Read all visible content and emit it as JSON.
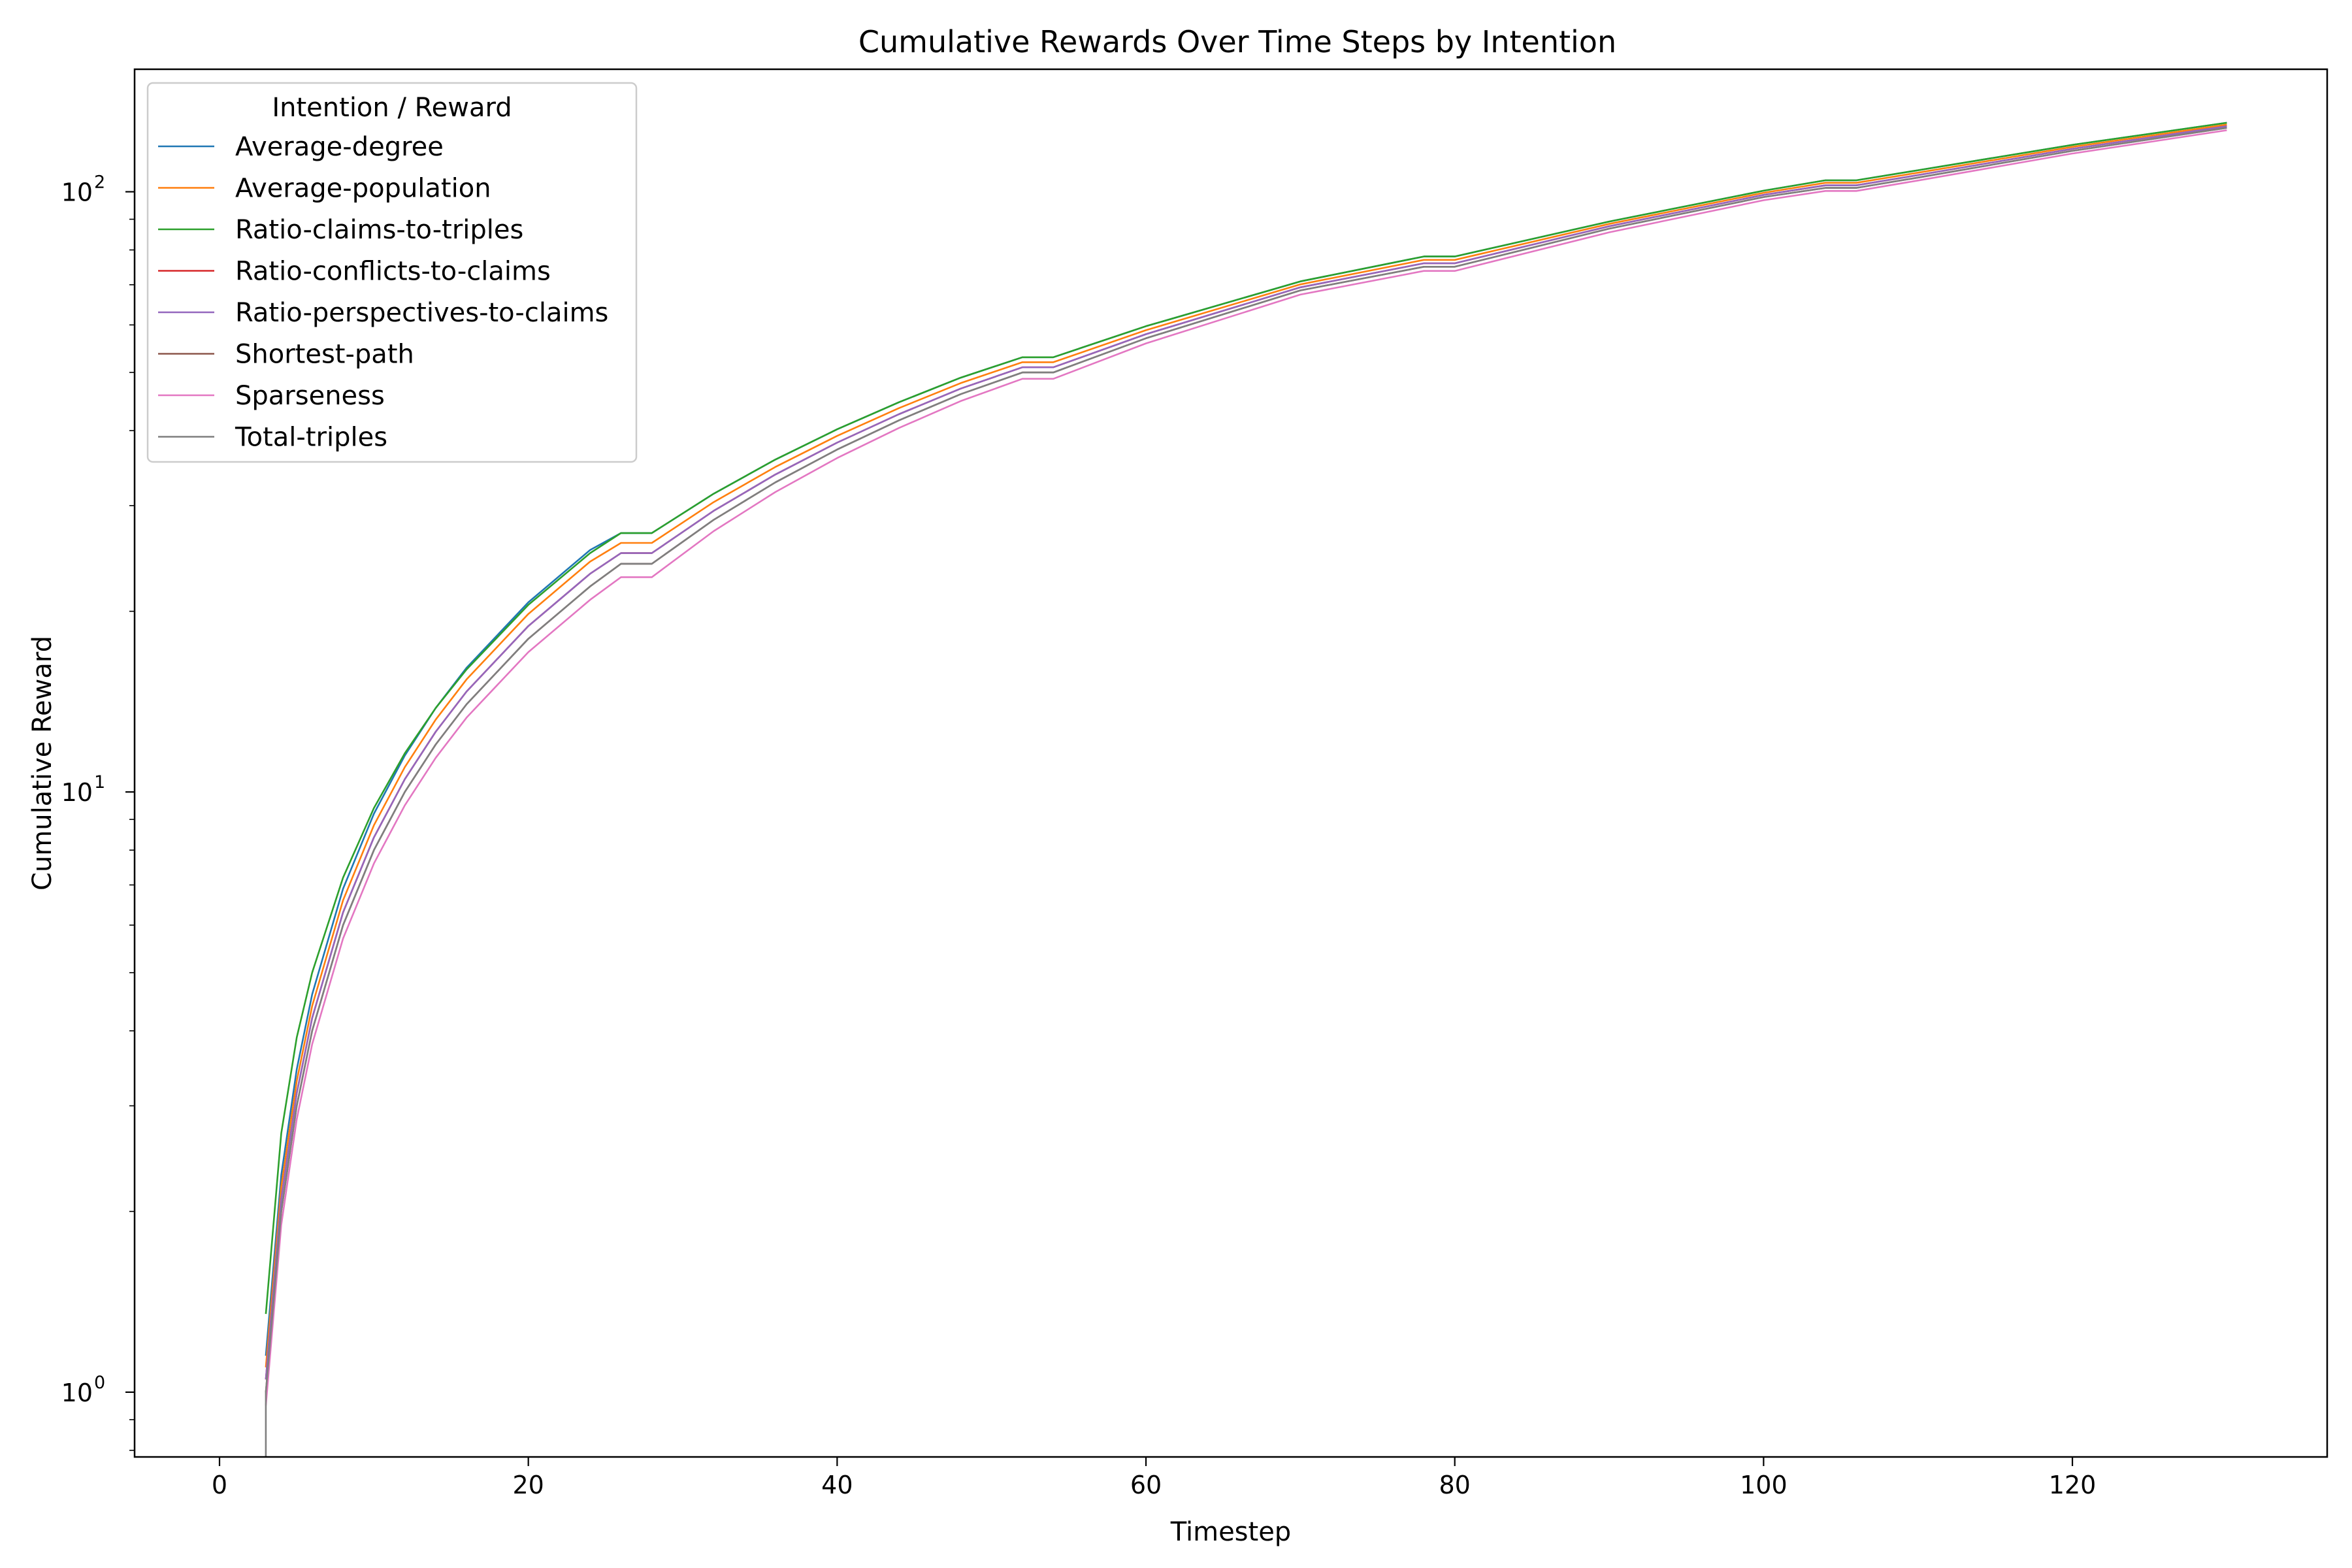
{
  "chart_data": {
    "type": "line",
    "title": "Cumulative Rewards Over Time Steps by Intention",
    "xlabel": "Timestep",
    "ylabel": "Cumulative Reward",
    "xscale": "linear",
    "yscale": "log",
    "xlim": [
      -5.5,
      136.5
    ],
    "ylim": [
      0.78,
      160
    ],
    "xticks": [
      0,
      20,
      40,
      60,
      80,
      100,
      120
    ],
    "yticks": [
      1,
      10,
      100
    ],
    "ytick_labels": [
      "10",
      "10",
      "10"
    ],
    "ytick_exponents": [
      "0",
      "1",
      "2"
    ],
    "grid": false,
    "legend": {
      "title": "Intention / Reward",
      "position": "top-left"
    },
    "series": [
      {
        "name": "Average-degree",
        "color": "#1f77b4",
        "x": [
          3,
          4,
          5,
          6,
          8,
          10,
          12,
          14,
          16,
          20,
          24,
          26,
          28,
          32,
          36,
          40,
          44,
          48,
          52,
          54,
          60,
          70,
          78,
          80,
          90,
          100,
          104,
          106,
          110,
          120,
          130
        ],
        "y": [
          1.15,
          2.3,
          3.45,
          4.6,
          6.9,
          9.2,
          11.5,
          13.8,
          16.1,
          20.7,
          25.3,
          27.0,
          27.0,
          31.4,
          35.8,
          40.2,
          44.6,
          49.0,
          53.0,
          53.0,
          59.7,
          70.9,
          78.0,
          78.0,
          89.2,
          100.4,
          104.5,
          104.5,
          108.6,
          119.7,
          130.3
        ]
      },
      {
        "name": "Average-population",
        "color": "#ff7f0e",
        "x": [
          3,
          4,
          5,
          6,
          8,
          10,
          12,
          14,
          16,
          20,
          24,
          26,
          28,
          32,
          36,
          40,
          44,
          48,
          52,
          54,
          60,
          70,
          78,
          80,
          90,
          100,
          104,
          106,
          110,
          120,
          130
        ],
        "y": [
          1.1,
          2.2,
          3.3,
          4.4,
          6.6,
          8.8,
          11.0,
          13.2,
          15.4,
          19.8,
          24.2,
          26.0,
          26.0,
          30.4,
          34.8,
          39.2,
          43.6,
          48.0,
          52.0,
          52.0,
          58.8,
          70.1,
          77.0,
          77.0,
          88.4,
          99.6,
          103.5,
          103.5,
          107.6,
          118.8,
          129.4
        ]
      },
      {
        "name": "Ratio-claims-to-triples",
        "color": "#2ca02c",
        "x": [
          3,
          4,
          5,
          6,
          8,
          10,
          12,
          14,
          16,
          20,
          24,
          26,
          28,
          32,
          36,
          40,
          44,
          48,
          52,
          54,
          60,
          70,
          78,
          80,
          90,
          100,
          104,
          106,
          110,
          120,
          130
        ],
        "y": [
          1.35,
          2.7,
          3.9,
          5.0,
          7.2,
          9.4,
          11.6,
          13.8,
          16.0,
          20.5,
          25.0,
          27.0,
          27.0,
          31.4,
          35.8,
          40.2,
          44.6,
          49.0,
          53.0,
          53.0,
          59.7,
          70.9,
          78.0,
          78.0,
          89.2,
          100.4,
          104.5,
          104.5,
          108.6,
          119.7,
          130.3
        ]
      },
      {
        "name": "Ratio-conflicts-to-claims",
        "color": "#d62728",
        "x": [
          3,
          4,
          5,
          6,
          8,
          10,
          12,
          14,
          16,
          20,
          24,
          26,
          28,
          32,
          36,
          40,
          44,
          48,
          52,
          54,
          60,
          70,
          78,
          80,
          90,
          100,
          104,
          106,
          110,
          120,
          130
        ],
        "y": [
          1.05,
          2.1,
          3.15,
          4.2,
          6.3,
          8.4,
          10.5,
          12.6,
          14.7,
          18.9,
          23.1,
          25.0,
          25.0,
          29.4,
          33.8,
          38.2,
          42.6,
          47.0,
          51.0,
          51.0,
          57.9,
          69.3,
          76.0,
          76.0,
          87.6,
          98.8,
          102.5,
          102.5,
          106.6,
          117.9,
          128.6
        ]
      },
      {
        "name": "Ratio-perspectives-to-claims",
        "color": "#9467bd",
        "x": [
          3,
          4,
          5,
          6,
          8,
          10,
          12,
          14,
          16,
          20,
          24,
          26,
          28,
          32,
          36,
          40,
          44,
          48,
          52,
          54,
          60,
          70,
          78,
          80,
          90,
          100,
          104,
          106,
          110,
          120,
          130
        ],
        "y": [
          1.05,
          2.1,
          3.15,
          4.2,
          6.3,
          8.4,
          10.5,
          12.6,
          14.7,
          18.9,
          23.1,
          25.0,
          25.0,
          29.4,
          33.8,
          38.2,
          42.6,
          47.0,
          51.0,
          51.0,
          57.9,
          69.3,
          76.0,
          76.0,
          87.6,
          98.8,
          102.5,
          102.5,
          106.6,
          117.9,
          128.6
        ]
      },
      {
        "name": "Shortest-path",
        "color": "#8c564b",
        "x": [
          3,
          4,
          5,
          6,
          8,
          10,
          12,
          14,
          16,
          20,
          24,
          26,
          28,
          32,
          36,
          40,
          44,
          48,
          52,
          54,
          60,
          70,
          78,
          80,
          90,
          100,
          104,
          106,
          110,
          120,
          130
        ],
        "y": [
          1.0,
          2.0,
          3.0,
          4.0,
          6.0,
          8.0,
          10.0,
          12.0,
          14.0,
          18.0,
          22.0,
          24.0,
          24.0,
          28.4,
          32.8,
          37.2,
          41.6,
          46.0,
          50.0,
          50.0,
          57.0,
          68.5,
          75.0,
          75.0,
          86.8,
          98.0,
          101.5,
          101.5,
          105.6,
          117.0,
          127.8
        ]
      },
      {
        "name": "Sparseness",
        "color": "#e377c2",
        "x": [
          3,
          4,
          5,
          6,
          8,
          10,
          12,
          14,
          16,
          20,
          24,
          26,
          28,
          32,
          36,
          40,
          44,
          48,
          52,
          54,
          60,
          70,
          78,
          80,
          90,
          100,
          104,
          106,
          110,
          120,
          130
        ],
        "y": [
          0.95,
          1.9,
          2.85,
          3.8,
          5.7,
          7.6,
          9.5,
          11.4,
          13.3,
          17.1,
          20.9,
          22.8,
          22.8,
          27.2,
          31.6,
          36.0,
          40.4,
          44.8,
          48.8,
          48.8,
          55.9,
          67.4,
          73.8,
          73.8,
          85.6,
          96.8,
          100.3,
          100.3,
          104.4,
          115.8,
          126.6
        ]
      },
      {
        "name": "Total-triples",
        "color": "#7f7f7f",
        "x": [
          3,
          3,
          4,
          5,
          6,
          8,
          10,
          12,
          14,
          16,
          20,
          24,
          26,
          28,
          32,
          36,
          40,
          44,
          48,
          52,
          54,
          60,
          70,
          78,
          80,
          90,
          100,
          104,
          106,
          110,
          120,
          130
        ],
        "y": [
          0.78,
          1.0,
          2.0,
          3.0,
          4.0,
          6.0,
          8.0,
          10.0,
          12.0,
          14.0,
          18.0,
          22.0,
          24.0,
          24.0,
          28.4,
          32.8,
          37.2,
          41.6,
          46.0,
          50.0,
          50.0,
          57.0,
          68.5,
          75.0,
          75.0,
          86.8,
          98.0,
          101.5,
          101.5,
          105.6,
          117.0,
          127.8
        ]
      }
    ]
  }
}
